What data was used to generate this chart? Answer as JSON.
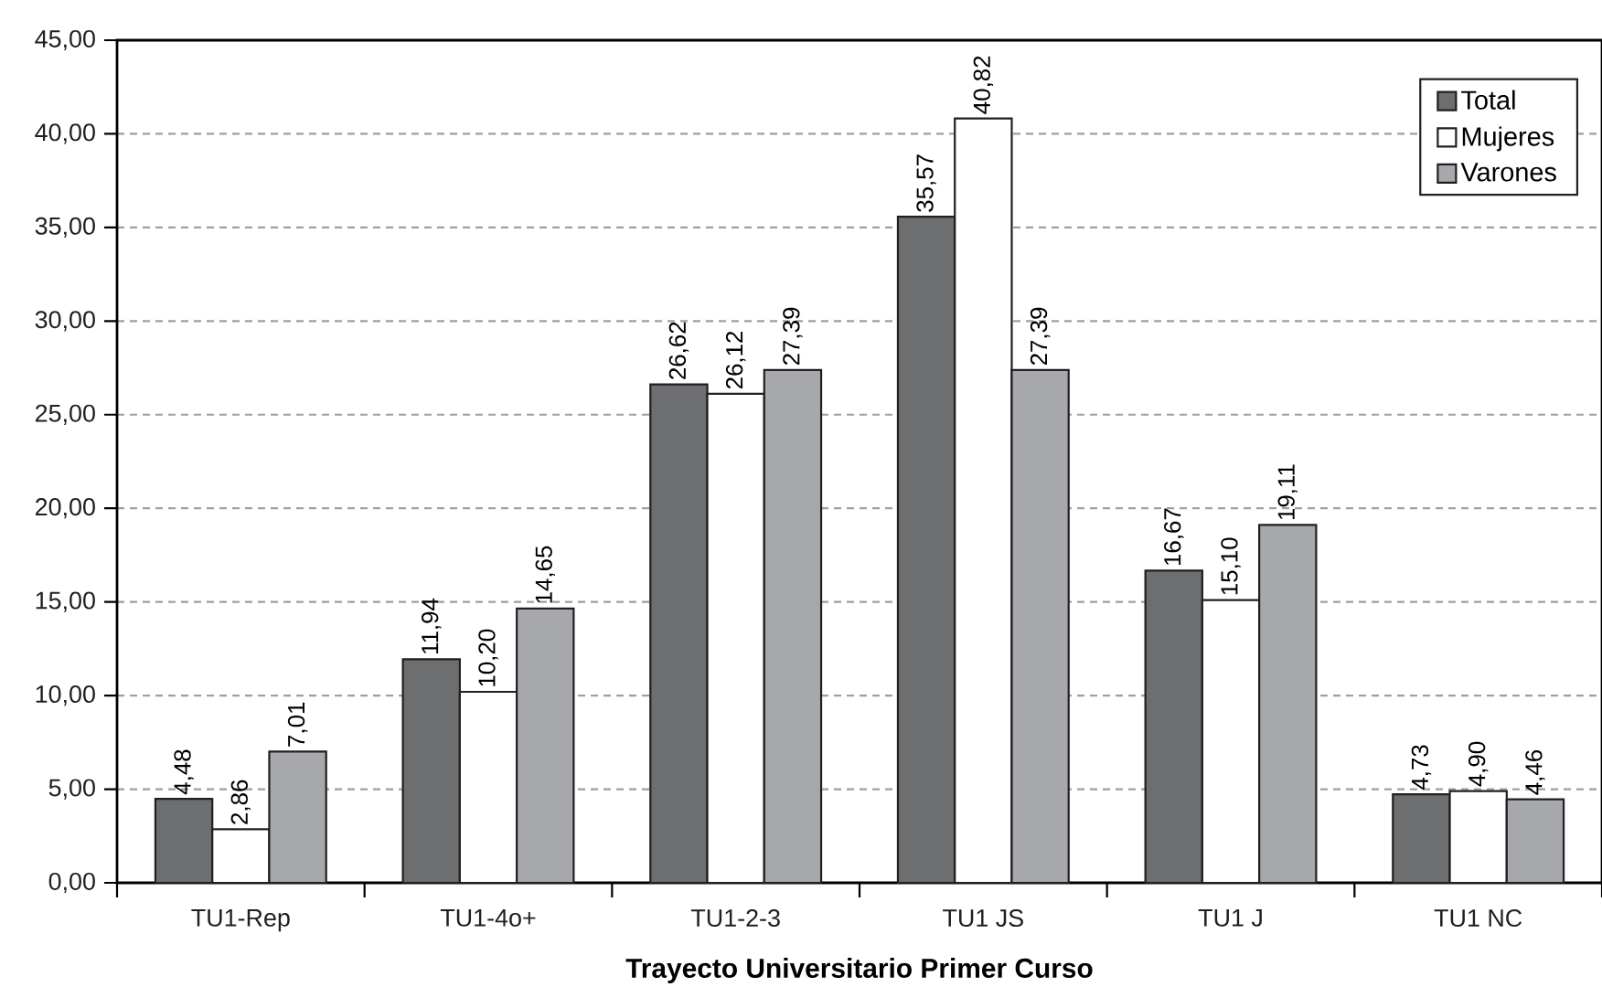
{
  "chart_data": {
    "type": "bar",
    "xlabel": "Trayecto Universitario Primer Curso",
    "categories": [
      "TU1-Rep",
      "TU1-4o+",
      "TU1-2-3",
      "TU1 JS",
      "TU1 J",
      "TU1 NC"
    ],
    "series": [
      {
        "name": "Total",
        "color": "#6d6e70",
        "values": [
          4.48,
          11.94,
          26.62,
          35.57,
          16.67,
          4.73
        ],
        "value_labels": [
          "4,48",
          "11,94",
          "26,62",
          "35,57",
          "16,67",
          "4,73"
        ]
      },
      {
        "name": "Mujeres",
        "color": "#ffffff",
        "values": [
          2.86,
          10.2,
          26.12,
          40.82,
          15.1,
          4.9
        ],
        "value_labels": [
          "2,86",
          "10,20",
          "26,12",
          "40,82",
          "15,10",
          "4,90"
        ]
      },
      {
        "name": "Varones",
        "color": "#a7a8ab",
        "values": [
          7.01,
          14.65,
          27.39,
          27.39,
          19.11,
          4.46
        ],
        "value_labels": [
          "7,01",
          "14,65",
          "27,39",
          "27,39",
          "19,11",
          "4,46"
        ]
      }
    ],
    "ylim": [
      0,
      45
    ],
    "yticks": [
      {
        "value": 0,
        "label": "0,00"
      },
      {
        "value": 5,
        "label": "5,00"
      },
      {
        "value": 10,
        "label": "10,00"
      },
      {
        "value": 15,
        "label": "15,00"
      },
      {
        "value": 20,
        "label": "20,00"
      },
      {
        "value": 25,
        "label": "25,00"
      },
      {
        "value": 30,
        "label": "30,00"
      },
      {
        "value": 35,
        "label": "35,00"
      },
      {
        "value": 40,
        "label": "40,00"
      },
      {
        "value": 45,
        "label": "45,00"
      }
    ],
    "grid": "y",
    "legend": "top right"
  }
}
